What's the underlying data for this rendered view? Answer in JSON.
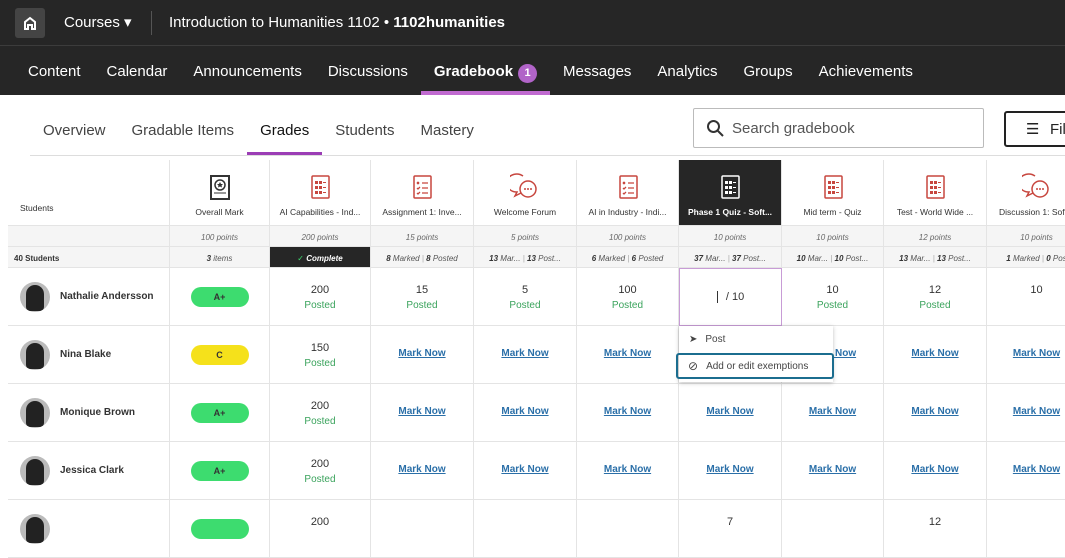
{
  "topbar": {
    "courses_label": "Courses",
    "course_title": "Introduction to Humanities 1102",
    "course_code": "1102humanities",
    "separator": "•"
  },
  "nav": [
    {
      "label": "Content"
    },
    {
      "label": "Calendar"
    },
    {
      "label": "Announcements"
    },
    {
      "label": "Discussions"
    },
    {
      "label": "Gradebook",
      "badge": "1",
      "active": true
    },
    {
      "label": "Messages"
    },
    {
      "label": "Analytics"
    },
    {
      "label": "Groups"
    },
    {
      "label": "Achievements"
    }
  ],
  "subtabs": [
    {
      "label": "Overview"
    },
    {
      "label": "Gradable Items"
    },
    {
      "label": "Grades",
      "active": true
    },
    {
      "label": "Students"
    },
    {
      "label": "Mastery"
    }
  ],
  "search": {
    "placeholder": "Search gradebook"
  },
  "filter_label": "Filt",
  "grid": {
    "students_header": "Students",
    "students_count": "40 Students",
    "overall": {
      "name": "Overall Mark",
      "points": "100 points",
      "stats": "3",
      "stats_label": "items"
    },
    "columns": [
      {
        "name": "AI Capabilities - Ind...",
        "icon": "test",
        "points": "200 points",
        "complete": "Complete"
      },
      {
        "name": "Assignment 1: Inve...",
        "icon": "assignment",
        "points": "15 points",
        "m": "8",
        "ml": "Marked",
        "p": "8",
        "pl": "Posted"
      },
      {
        "name": "Welcome Forum",
        "icon": "discussion",
        "points": "5 points",
        "m": "13",
        "ml": "Mar...",
        "p": "13",
        "pl": "Post..."
      },
      {
        "name": "AI in Industry - Indi...",
        "icon": "assignment",
        "points": "100 points",
        "m": "6",
        "ml": "Marked",
        "p": "6",
        "pl": "Posted"
      },
      {
        "name": "Phase 1 Quiz - Soft...",
        "icon": "test",
        "points": "10 points",
        "m": "37",
        "ml": "Mar...",
        "p": "37",
        "pl": "Post...",
        "selected": true
      },
      {
        "name": "Mid term - Quiz",
        "icon": "test",
        "points": "10 points",
        "m": "10",
        "ml": "Mar...",
        "p": "10",
        "pl": "Post..."
      },
      {
        "name": "Test - World Wide ...",
        "icon": "test",
        "points": "12 points",
        "m": "13",
        "ml": "Mar...",
        "p": "13",
        "pl": "Post..."
      },
      {
        "name": "Discussion 1: Soft...",
        "icon": "discussion",
        "points": "10 points",
        "m": "1",
        "ml": "Marked",
        "p": "0",
        "pl": "Pos"
      }
    ],
    "rows": [
      {
        "name": "Nathalie Andersson",
        "mark": "A+",
        "mark_color": "#3ddc6f",
        "cells": [
          [
            "200",
            "Posted"
          ],
          [
            "15",
            "Posted"
          ],
          [
            "5",
            "Posted"
          ],
          [
            "100",
            "Posted"
          ],
          [
            "edit",
            "/ 10"
          ],
          [
            "10",
            "Posted"
          ],
          [
            "12",
            "Posted"
          ],
          [
            "10",
            ""
          ]
        ]
      },
      {
        "name": "Nina Blake",
        "mark": "C",
        "mark_color": "#f5e11b",
        "cells": [
          [
            "150",
            "Posted"
          ],
          [
            "mark",
            "Mark Now"
          ],
          [
            "mark",
            "Mark Now"
          ],
          [
            "mark",
            "Mark Now"
          ],
          [
            "",
            ""
          ],
          [
            "mark",
            "Mark Now"
          ],
          [
            "mark",
            "Mark Now"
          ],
          [
            "mark",
            "Mark Now"
          ]
        ]
      },
      {
        "name": "Monique Brown",
        "mark": "A+",
        "mark_color": "#3ddc6f",
        "cells": [
          [
            "200",
            "Posted"
          ],
          [
            "mark",
            "Mark Now"
          ],
          [
            "mark",
            "Mark Now"
          ],
          [
            "mark",
            "Mark Now"
          ],
          [
            "mark",
            "Mark Now"
          ],
          [
            "mark",
            "Mark Now"
          ],
          [
            "mark",
            "Mark Now"
          ],
          [
            "mark",
            "Mark Now"
          ]
        ]
      },
      {
        "name": "Jessica Clark",
        "mark": "A+",
        "mark_color": "#3ddc6f",
        "cells": [
          [
            "200",
            "Posted"
          ],
          [
            "mark",
            "Mark Now"
          ],
          [
            "mark",
            "Mark Now"
          ],
          [
            "mark",
            "Mark Now"
          ],
          [
            "mark",
            "Mark Now"
          ],
          [
            "mark",
            "Mark Now"
          ],
          [
            "mark",
            "Mark Now"
          ],
          [
            "mark",
            "Mark Now"
          ]
        ]
      },
      {
        "name": "",
        "mark": "",
        "mark_color": "#3ddc6f",
        "cells": [
          [
            "200",
            ""
          ],
          [
            "",
            ""
          ],
          [
            "",
            ""
          ],
          [
            "",
            ""
          ],
          [
            "7",
            ""
          ],
          [
            "",
            ""
          ],
          [
            "12",
            ""
          ],
          [
            "",
            ""
          ]
        ]
      }
    ]
  },
  "menu": {
    "post": "Post",
    "exempt": "Add or edit exemptions"
  }
}
